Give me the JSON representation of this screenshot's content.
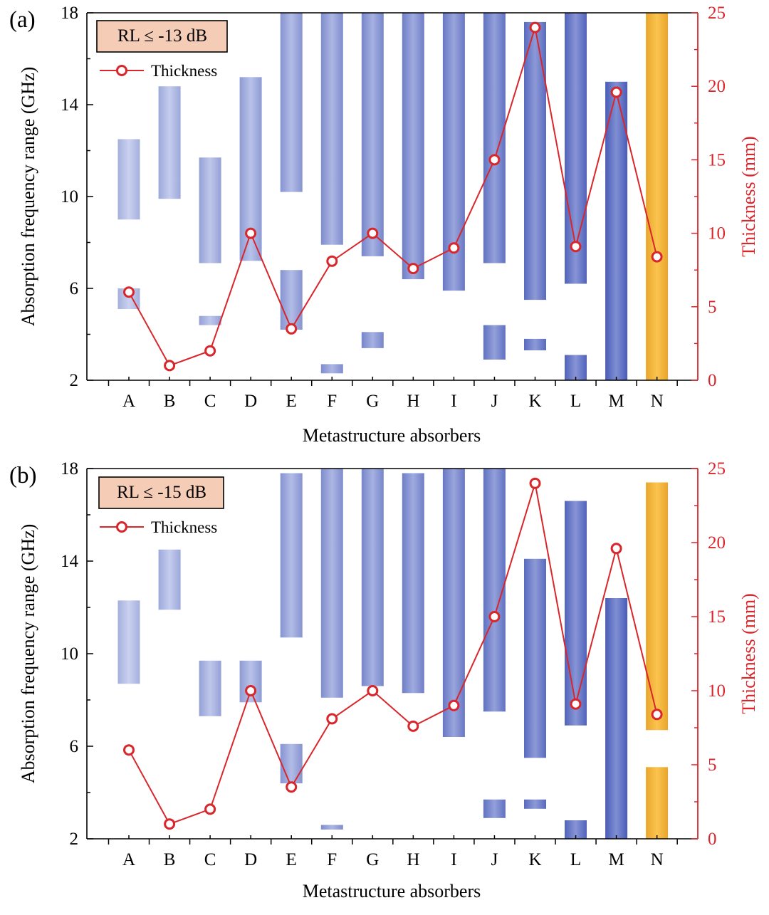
{
  "figure": {
    "colors": {
      "bar_blue_light": "#b7c1ea",
      "bar_blue_dark": "#4f63c0",
      "bar_orange_light": "#fbc44e",
      "bar_orange_dark": "#e8a52c",
      "thickness_line": "#d9262b",
      "right_axis": "#d9262b",
      "legend_box": "#f5cdb7",
      "axis": "#000000"
    }
  },
  "chart_data": [
    {
      "panel": "(a)",
      "type": "bar",
      "subtype": "floating range bar with line overlay",
      "title": "",
      "xlabel": "Metastructure absorbers",
      "ylabel": "Absorption frequency range (GHz)",
      "y2label": "Thickness (mm)",
      "ylim": [
        2,
        18
      ],
      "y2lim": [
        0,
        25
      ],
      "yticks": [
        2,
        6,
        10,
        14,
        18
      ],
      "y2ticks": [
        0,
        5,
        10,
        15,
        20,
        25
      ],
      "annotation": "RL ≤ -13 dB",
      "legend": {
        "label": "Thickness",
        "placement": "top-left"
      },
      "categories": [
        "A",
        "B",
        "C",
        "D",
        "E",
        "F",
        "G",
        "H",
        "I",
        "J",
        "K",
        "L",
        "M",
        "N"
      ],
      "ranges": [
        [
          [
            5.1,
            6.0
          ],
          [
            9.0,
            12.5
          ]
        ],
        [
          [
            9.9,
            14.8
          ]
        ],
        [
          [
            4.4,
            4.8
          ],
          [
            7.1,
            11.7
          ]
        ],
        [
          [
            7.2,
            15.2
          ]
        ],
        [
          [
            4.2,
            6.8
          ],
          [
            10.2,
            18.0
          ]
        ],
        [
          [
            2.3,
            2.7
          ],
          [
            7.9,
            18.0
          ]
        ],
        [
          [
            3.4,
            4.1
          ],
          [
            7.4,
            18.0
          ]
        ],
        [
          [
            6.4,
            18.0
          ]
        ],
        [
          [
            5.9,
            18.0
          ]
        ],
        [
          [
            2.9,
            4.4
          ],
          [
            7.1,
            18.0
          ]
        ],
        [
          [
            3.3,
            3.8
          ],
          [
            5.5,
            17.6
          ]
        ],
        [
          [
            2.0,
            3.1
          ],
          [
            6.2,
            18.0
          ]
        ],
        [
          [
            2.0,
            15.0
          ]
        ],
        [
          [
            2.0,
            18.0
          ]
        ]
      ],
      "thickness": [
        6.0,
        1.0,
        2.0,
        10.0,
        3.5,
        8.1,
        10.0,
        7.6,
        9.0,
        15.0,
        24.0,
        9.1,
        19.6,
        8.4
      ]
    },
    {
      "panel": "(b)",
      "type": "bar",
      "subtype": "floating range bar with line overlay",
      "title": "",
      "xlabel": "Metastructure absorbers",
      "ylabel": "Absorption frequency range (GHz)",
      "y2label": "Thickness (mm)",
      "ylim": [
        2,
        18
      ],
      "y2lim": [
        0,
        25
      ],
      "yticks": [
        2,
        6,
        10,
        14,
        18
      ],
      "y2ticks": [
        0,
        5,
        10,
        15,
        20,
        25
      ],
      "annotation": "RL ≤ -15 dB",
      "legend": {
        "label": "Thickness",
        "placement": "top-left"
      },
      "categories": [
        "A",
        "B",
        "C",
        "D",
        "E",
        "F",
        "G",
        "H",
        "I",
        "J",
        "K",
        "L",
        "M",
        "N"
      ],
      "ranges": [
        [
          [
            8.7,
            12.3
          ]
        ],
        [
          [
            11.9,
            14.5
          ]
        ],
        [
          [
            7.3,
            9.7
          ]
        ],
        [
          [
            7.9,
            9.7
          ]
        ],
        [
          [
            4.4,
            6.1
          ],
          [
            10.7,
            17.8
          ]
        ],
        [
          [
            2.4,
            2.6
          ],
          [
            8.1,
            18.0
          ]
        ],
        [
          [
            8.6,
            18.0
          ]
        ],
        [
          [
            8.3,
            17.8
          ]
        ],
        [
          [
            6.4,
            18.0
          ]
        ],
        [
          [
            2.9,
            3.7
          ],
          [
            7.5,
            18.0
          ]
        ],
        [
          [
            3.3,
            3.7
          ],
          [
            5.5,
            14.1
          ]
        ],
        [
          [
            2.0,
            2.8
          ],
          [
            6.9,
            16.6
          ]
        ],
        [
          [
            2.0,
            12.4
          ]
        ],
        [
          [
            2.0,
            5.1
          ],
          [
            6.7,
            17.4
          ]
        ]
      ],
      "thickness": [
        6.0,
        1.0,
        2.0,
        10.0,
        3.5,
        8.1,
        10.0,
        7.6,
        9.0,
        15.0,
        24.0,
        9.1,
        19.6,
        8.4
      ]
    }
  ]
}
